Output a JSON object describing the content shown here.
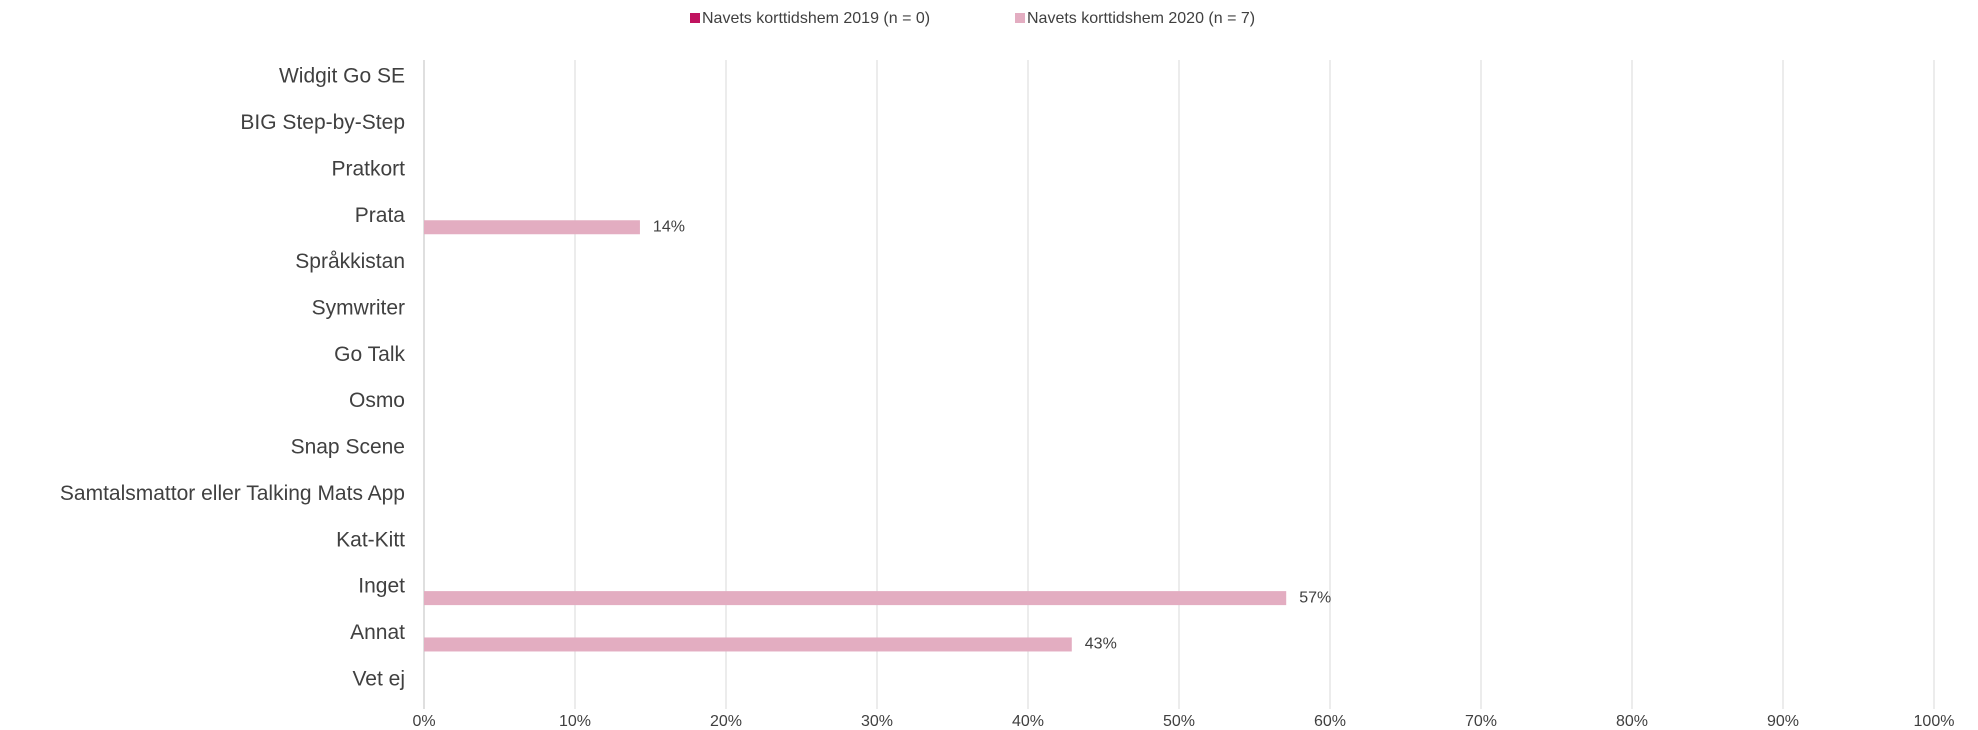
{
  "chart_data": {
    "type": "bar",
    "orientation": "horizontal",
    "categories": [
      "Widgit Go SE",
      "BIG Step-by-Step",
      "Pratkort",
      "Prata",
      "Språkkistan",
      "Symwriter",
      "Go Talk",
      "Osmo",
      "Snap Scene",
      "Samtalsmattor eller Talking Mats App",
      "Kat-Kitt",
      "Inget",
      "Annat",
      "Vet ej"
    ],
    "series": [
      {
        "name": "Navets korttidshem 2019 (n = 0)",
        "color": "#c0135f",
        "values": [
          0,
          0,
          0,
          0,
          0,
          0,
          0,
          0,
          0,
          0,
          0,
          0,
          0,
          0
        ]
      },
      {
        "name": "Navets korttidshem 2020 (n = 7)",
        "color": "#e3adc1",
        "values": [
          0,
          0,
          0,
          14.3,
          0,
          0,
          0,
          0,
          0,
          0,
          0,
          57.1,
          42.9,
          0
        ],
        "value_labels": [
          null,
          null,
          null,
          "14%",
          null,
          null,
          null,
          null,
          null,
          null,
          null,
          "57%",
          "43%",
          null
        ]
      }
    ],
    "xlim": [
      0,
      100
    ],
    "xticks": [
      {
        "value": 0,
        "label": "0%"
      },
      {
        "value": 10,
        "label": "10%"
      },
      {
        "value": 20,
        "label": "20%"
      },
      {
        "value": 30,
        "label": "30%"
      },
      {
        "value": 40,
        "label": "40%"
      },
      {
        "value": 50,
        "label": "50%"
      },
      {
        "value": 60,
        "label": "60%"
      },
      {
        "value": 70,
        "label": "70%"
      },
      {
        "value": 80,
        "label": "80%"
      },
      {
        "value": 90,
        "label": "90%"
      },
      {
        "value": 100,
        "label": "100%"
      }
    ],
    "grid": true,
    "legend": "top"
  }
}
